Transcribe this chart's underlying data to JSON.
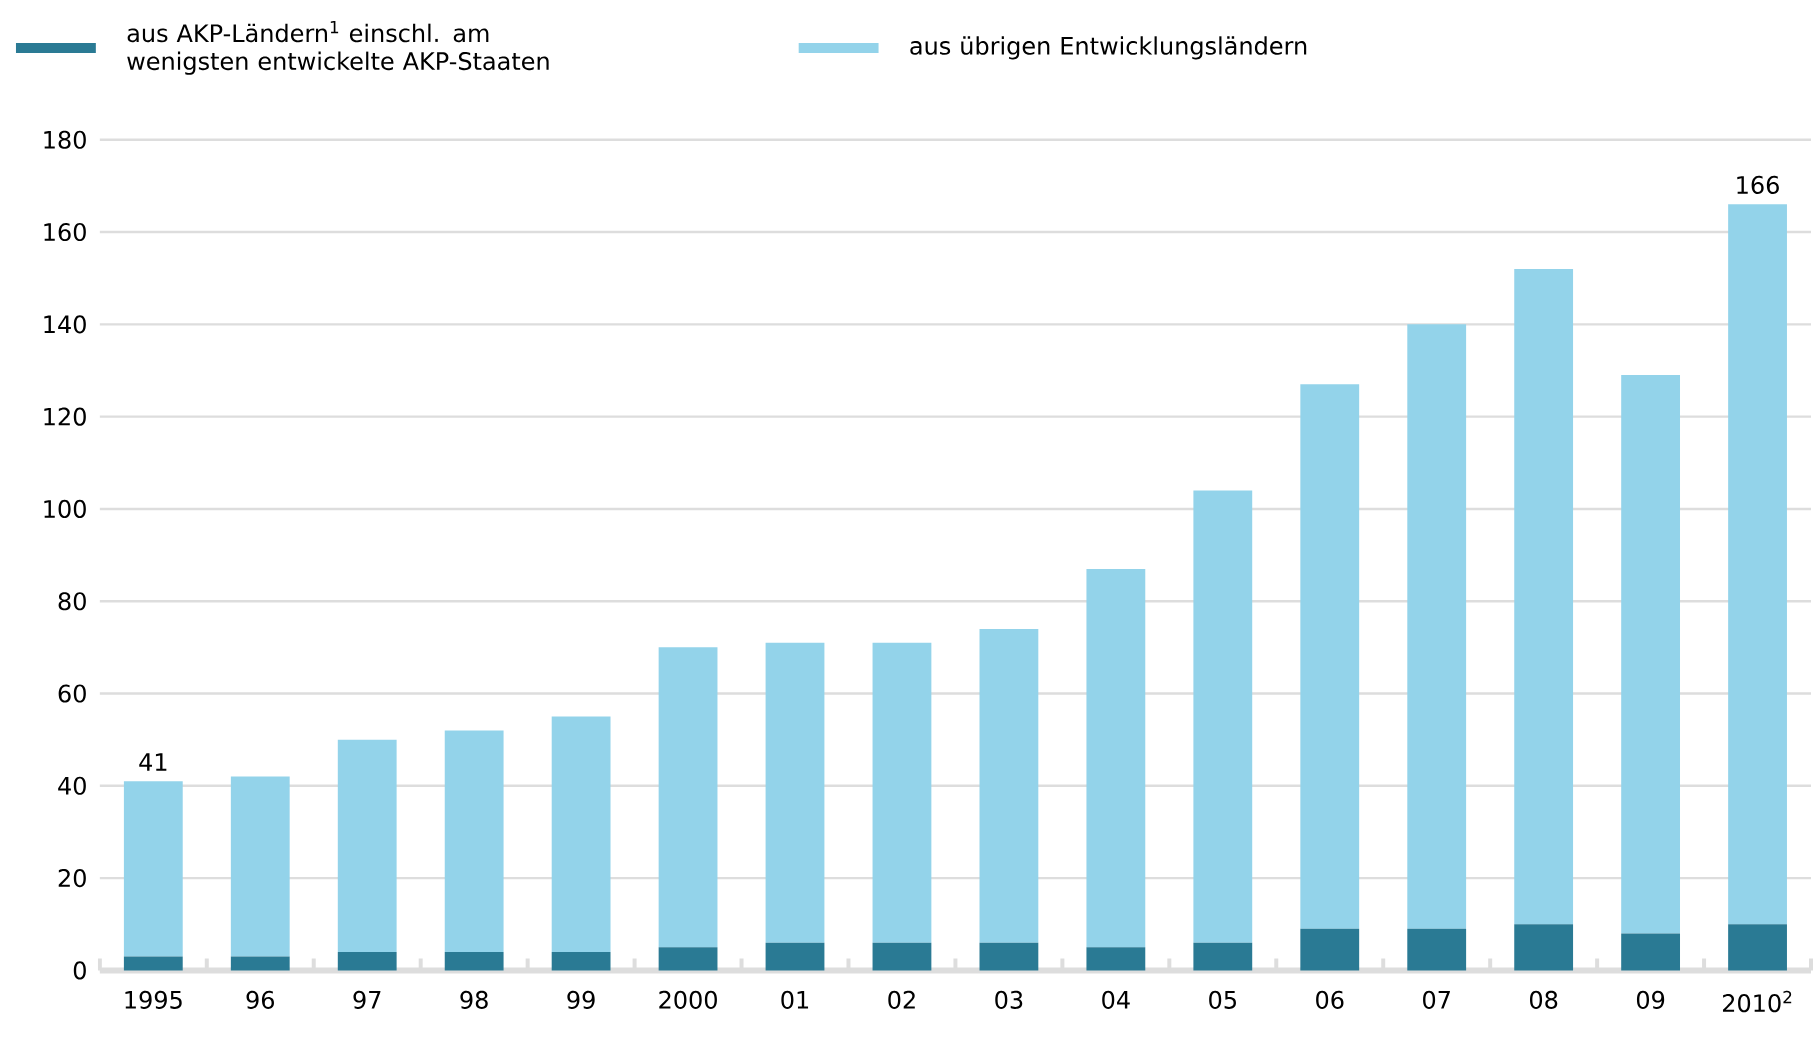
{
  "chart_data": {
    "type": "bar",
    "stacked": true,
    "categories": [
      "1995",
      "96",
      "97",
      "98",
      "99",
      "2000",
      "01",
      "02",
      "03",
      "04",
      "05",
      "06",
      "07",
      "08",
      "09",
      "2010$^{2}$"
    ],
    "series": [
      {
        "name": "aus AKP-Ländern$^{1}$ einschl. am wenigsten entwickelte AKP-Staaten",
        "color": "#2a7a94",
        "values": [
          3,
          3,
          4,
          4,
          4,
          5,
          6,
          6,
          6,
          5,
          6,
          9,
          9,
          10,
          8,
          10
        ]
      },
      {
        "name": "aus übrigen Entwicklungsländern",
        "color": "#93d3ea",
        "values": [
          38,
          39,
          46,
          48,
          51,
          65,
          65,
          65,
          68,
          82,
          98,
          118,
          131,
          142,
          121,
          156
        ]
      }
    ],
    "totals": [
      "41",
      null,
      null,
      null,
      null,
      null,
      null,
      null,
      null,
      null,
      null,
      null,
      null,
      null,
      null,
      "166"
    ],
    "ylim": [
      0,
      180
    ],
    "yticks": [
      0,
      20,
      40,
      60,
      80,
      100,
      120,
      140,
      160,
      180
    ],
    "grid": "y",
    "legend": "top left"
  }
}
